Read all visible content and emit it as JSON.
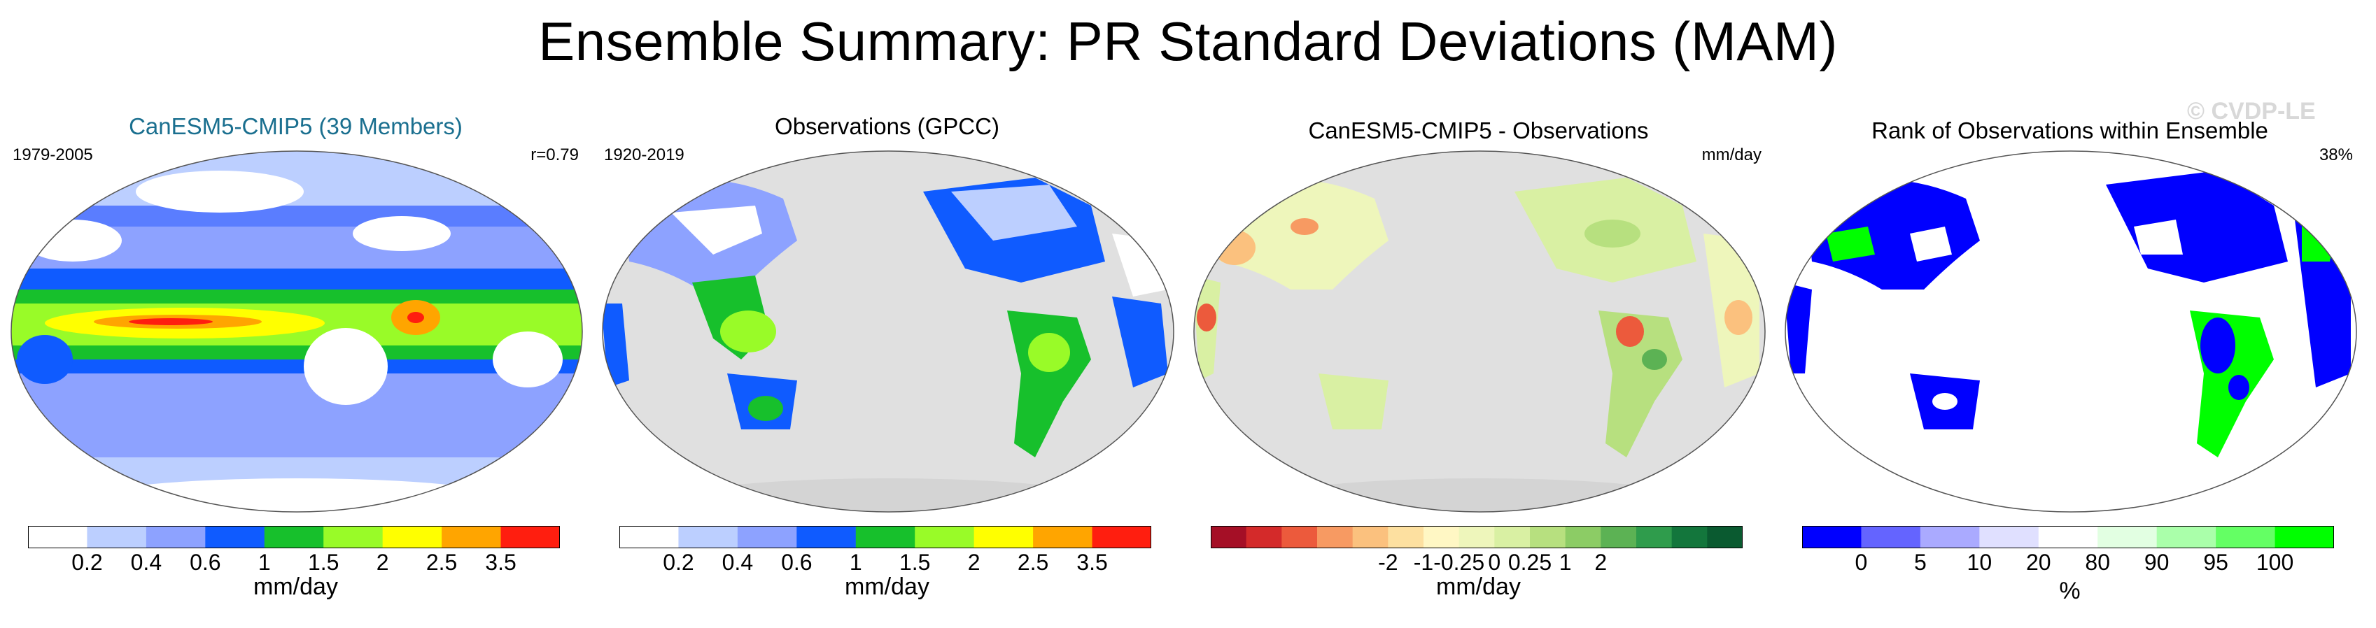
{
  "title": "Ensemble Summary: PR Standard Deviations (MAM)",
  "watermark": "© CVDP-LE",
  "chart_data": [
    {
      "type": "heatmap",
      "title": "CanESM5-CMIP5 (39 Members)",
      "period": "1979-2005",
      "stat": "r=0.79",
      "units": "mm/day",
      "colorbar": {
        "colors": [
          "#ffffff",
          "#bccfff",
          "#8da2ff",
          "#0f5bff",
          "#17c02c",
          "#99fb28",
          "#ffff00",
          "#ffa500",
          "#ff1e0f"
        ],
        "ticks": [
          "0.2",
          "0.4",
          "0.6",
          "1",
          "1.5",
          "2",
          "2.5",
          "3.5"
        ],
        "label": "mm/day"
      }
    },
    {
      "type": "heatmap",
      "title": "Observations (GPCC)",
      "period": "1920-2019",
      "units": "mm/day",
      "colorbar": {
        "colors": [
          "#ffffff",
          "#bccfff",
          "#8da2ff",
          "#0f5bff",
          "#17c02c",
          "#99fb28",
          "#ffff00",
          "#ffa500",
          "#ff1e0f"
        ],
        "ticks": [
          "0.2",
          "0.4",
          "0.6",
          "1",
          "1.5",
          "2",
          "2.5",
          "3.5"
        ],
        "label": "mm/day"
      }
    },
    {
      "type": "heatmap",
      "title": "CanESM5-CMIP5 - Observations",
      "units_label": "mm/day",
      "colorbar": {
        "colors": [
          "#a50f26",
          "#d42a2a",
          "#ec5a3c",
          "#f79a62",
          "#fbc17e",
          "#fde0a0",
          "#fff7c4",
          "#eef6bb",
          "#d9f0a3",
          "#b7e07f",
          "#8ccc65",
          "#5cb254",
          "#2f9c4c",
          "#13763c",
          "#0a5a30"
        ],
        "ticks": [
          "-2",
          "-1",
          "-0.25",
          "0",
          "0.25",
          "1",
          "2"
        ],
        "label": "mm/day"
      }
    },
    {
      "type": "heatmap",
      "title": "Rank of Observations within Ensemble",
      "stat": "38%",
      "colorbar": {
        "colors": [
          "#0000ff",
          "#6464ff",
          "#aaaaff",
          "#e0e0ff",
          "#ffffff",
          "#e2ffe2",
          "#aaffaa",
          "#64ff64",
          "#00ff00"
        ],
        "ticks": [
          "0",
          "5",
          "10",
          "20",
          "80",
          "90",
          "95",
          "100"
        ],
        "label": "%"
      }
    }
  ]
}
